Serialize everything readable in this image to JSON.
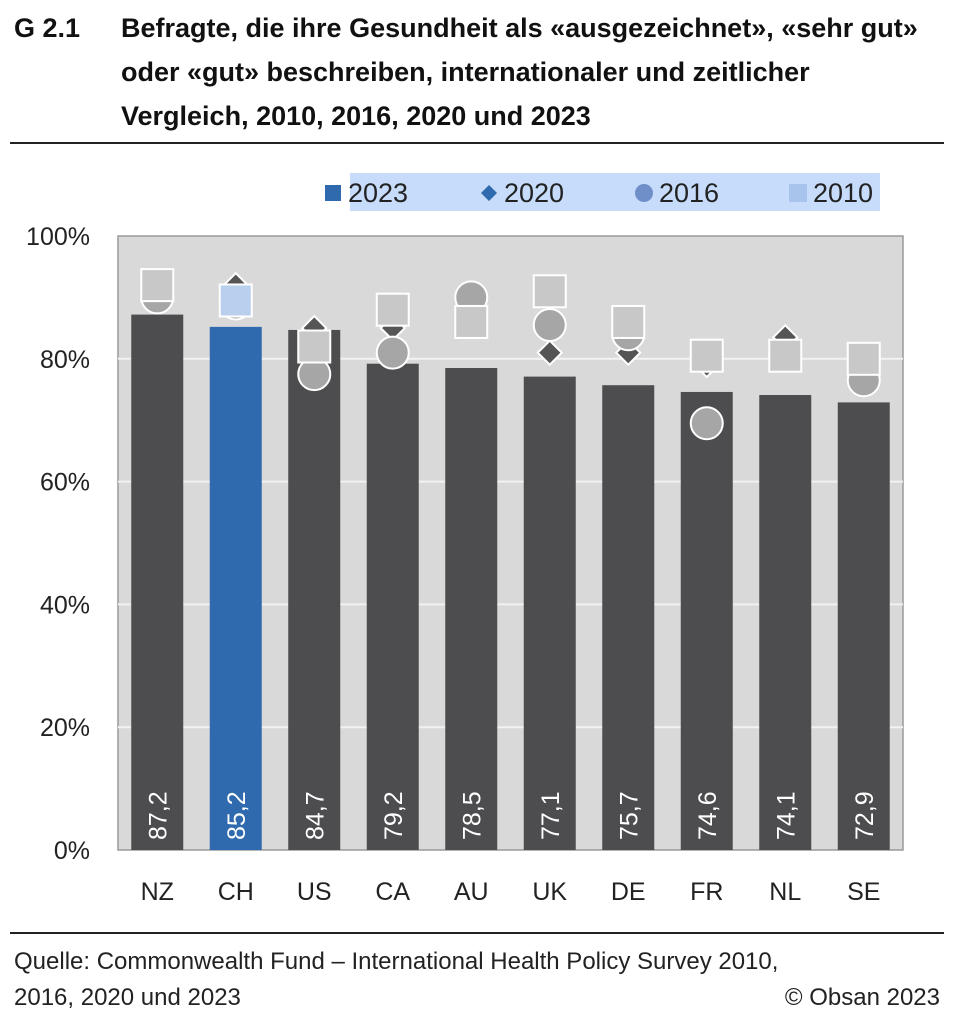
{
  "figure": {
    "id": "G 2.1",
    "title": "Befragte, die ihre Gesundheit als «ausgezeichnet», «sehr gut» oder «gut» beschreiben, internationaler und zeitlicher Vergleich, 2010, 2016, 2020 und 2023"
  },
  "source": {
    "line1": "Quelle: Commonwealth Fund – International Health Policy Survey 2010,",
    "line2": "2016, 2020 und 2023",
    "copyright": "© Obsan 2023"
  },
  "colors": {
    "bar": "#4d4d4f",
    "bar_highlight": "#2e6aad",
    "plot_bg": "#d9d9d9",
    "legend_bg": "#c6dcfa",
    "marker_2020_legend": "#2e6aad",
    "marker_2016_legend": "#6f8fc9",
    "marker_2010_legend": "#a9c4ec",
    "marker_2020": "#555555",
    "marker_2016": "#a6a6a6",
    "marker_2010": "#c8c8c8",
    "marker_2010_ch": "#b8cfee"
  },
  "chart_data": {
    "type": "bar",
    "categories": [
      "NZ",
      "CH",
      "US",
      "CA",
      "AU",
      "UK",
      "DE",
      "FR",
      "NL",
      "SE"
    ],
    "highlight": "CH",
    "ylim": [
      0,
      100
    ],
    "yticks": [
      "0%",
      "20%",
      "40%",
      "60%",
      "80%",
      "100%"
    ],
    "ytick_values": [
      0,
      20,
      40,
      60,
      80,
      100
    ],
    "grid": true,
    "legend_position": "top",
    "series": [
      {
        "name": "2023",
        "kind": "bar",
        "values": [
          87.2,
          85.2,
          84.7,
          79.2,
          78.5,
          77.1,
          75.7,
          74.6,
          74.1,
          72.9
        ],
        "labels": [
          "87,2",
          "85,2",
          "84,7",
          "79,2",
          "78,5",
          "77,1",
          "75,7",
          "74,6",
          "74,1",
          "72,9"
        ]
      },
      {
        "name": "2020",
        "kind": "marker",
        "marker": "diamond",
        "values": [
          90,
          92,
          85,
          85,
          null,
          81,
          81,
          79,
          83.5,
          null
        ]
      },
      {
        "name": "2016",
        "kind": "marker",
        "marker": "circle",
        "values": [
          90,
          89,
          77.5,
          81,
          90,
          85.5,
          84,
          69.5,
          null,
          76.5
        ]
      },
      {
        "name": "2010",
        "kind": "marker",
        "marker": "square",
        "values": [
          92,
          89.5,
          82,
          88,
          86,
          91,
          86,
          80.5,
          80.5,
          80
        ]
      }
    ]
  }
}
